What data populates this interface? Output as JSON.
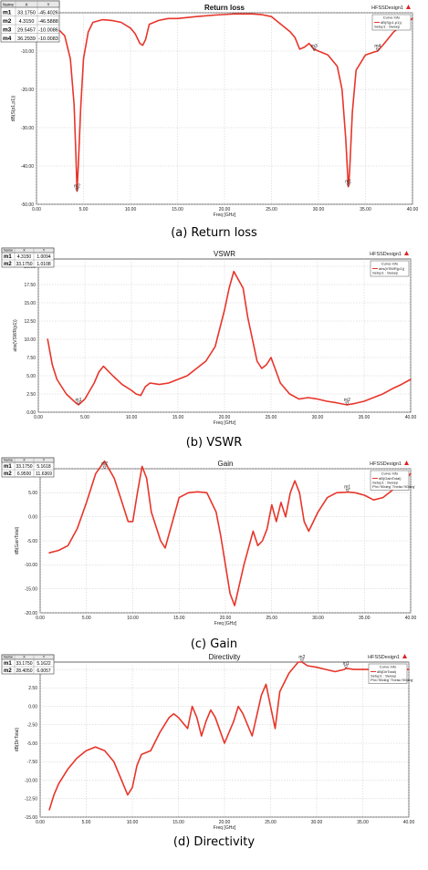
{
  "brand": "HFSSDesign1",
  "legend_title": "Curve Info",
  "chart_data": [
    {
      "id": "rl",
      "type": "line",
      "title": "Return loss",
      "caption": "(a) Return loss",
      "xlabel": "Freq [GHz]",
      "ylabel": "dB(S(p1,p1))",
      "xlim": [
        0,
        40
      ],
      "ylim": [
        -50,
        0
      ],
      "xticks": [
        "0.00",
        "5.00",
        "10.00",
        "15.00",
        "20.00",
        "25.00",
        "30.00",
        "35.00",
        "40.00"
      ],
      "yticks": [
        "0.00",
        "-10.00",
        "-20.00",
        "-30.00",
        "-40.00",
        "-50.00"
      ],
      "grid": true,
      "legend": "top-right",
      "legend_lines": [
        "dB(S(p1,p1))",
        "Setup1 : Sweep"
      ],
      "marker_table": {
        "headers": [
          "Name",
          "X",
          "Y"
        ],
        "rows": [
          [
            "m1",
            "33.1750",
            "-45.4026"
          ],
          [
            "m2",
            "4.3150",
            "-46.5888"
          ],
          [
            "m3",
            "29.5457",
            "-10.0086"
          ],
          [
            "m4",
            "36.2939",
            "-10.0083"
          ]
        ]
      },
      "markers": [
        {
          "name": "m1",
          "x": 33.175,
          "y": -45.4026
        },
        {
          "name": "m2",
          "x": 4.315,
          "y": -46.5888
        },
        {
          "name": "m3",
          "x": 29.5457,
          "y": -10.0086
        },
        {
          "name": "m4",
          "x": 36.2939,
          "y": -10.0083
        }
      ],
      "series": [
        {
          "color": "#e8352a",
          "x": [
            1,
            2,
            3,
            3.6,
            4,
            4.2,
            4.315,
            4.45,
            4.7,
            5,
            5.5,
            6,
            7,
            8,
            9,
            10,
            10.5,
            11,
            11.3,
            11.6,
            12,
            13,
            14,
            15,
            17,
            19,
            21,
            22,
            23,
            24,
            25,
            26,
            27,
            27.5,
            28,
            28.5,
            29,
            29.5,
            30,
            31,
            32,
            32.5,
            32.9,
            33.1,
            33.175,
            33.3,
            33.6,
            34,
            35,
            36,
            36.3,
            37,
            38,
            39,
            40
          ],
          "y": [
            -3,
            -3.5,
            -6,
            -12,
            -24,
            -38,
            -46.6,
            -40,
            -25,
            -12,
            -5,
            -2.5,
            -1.8,
            -2,
            -2.5,
            -4,
            -5.5,
            -8,
            -8.5,
            -7,
            -3,
            -2,
            -1.5,
            -1.5,
            -1,
            -0.6,
            -0.3,
            -0.3,
            -0.3,
            -0.5,
            -1,
            -3,
            -5,
            -6.5,
            -9.5,
            -9,
            -8,
            -9.5,
            -10,
            -11,
            -14,
            -20,
            -33,
            -42,
            -45.4,
            -42,
            -26,
            -15,
            -11,
            -10.2,
            -10,
            -8,
            -5,
            -3,
            -1.5
          ]
        }
      ]
    },
    {
      "id": "vswr",
      "type": "line",
      "title": "VSWR",
      "caption": "(b) VSWR",
      "xlabel": "Freq [GHz]",
      "ylabel": "abs(VSWR(p1))",
      "xlim": [
        0,
        40
      ],
      "ylim": [
        0,
        21
      ],
      "xticks": [
        "0.00",
        "5.00",
        "10.00",
        "15.00",
        "20.00",
        "25.00",
        "30.00",
        "35.00",
        "40.00"
      ],
      "yticks": [
        "0.00",
        "2.50",
        "5.00",
        "7.50",
        "10.00",
        "12.50",
        "15.00",
        "17.50",
        "20.00"
      ],
      "ytick_values": [
        0,
        2.5,
        5,
        7.5,
        10,
        12.5,
        15,
        17.5,
        20
      ],
      "grid": true,
      "legend": "top-right",
      "legend_lines": [
        "abs(VSWR(p1))",
        "Setup1 : Sweep"
      ],
      "marker_table": {
        "headers": [
          "Name",
          "X",
          "Y"
        ],
        "rows": [
          [
            "m1",
            "4.3150",
            "1.0094"
          ],
          [
            "m2",
            "33.1750",
            "1.0108"
          ]
        ]
      },
      "markers": [
        {
          "name": "m1",
          "x": 4.315,
          "y": 1.0094
        },
        {
          "name": "m2",
          "x": 33.175,
          "y": 1.0108
        }
      ],
      "series": [
        {
          "color": "#e8352a",
          "x": [
            1,
            1.5,
            2,
            3,
            4,
            4.315,
            5,
            6,
            6.5,
            7,
            8,
            9,
            10,
            10.5,
            11,
            11.5,
            12,
            13,
            14,
            16,
            18,
            19,
            20,
            20.5,
            21,
            22,
            22.5,
            23,
            23.5,
            24,
            24.5,
            25,
            26,
            27,
            28,
            29,
            30,
            31,
            32,
            33,
            33.175,
            34,
            35,
            36,
            37,
            38,
            39,
            40
          ],
          "y": [
            10,
            6.5,
            4.5,
            2.5,
            1.3,
            1.01,
            1.8,
            4,
            5.5,
            6.3,
            5,
            3.8,
            3,
            2.5,
            2.3,
            3.5,
            4,
            3.8,
            4,
            5,
            7,
            9,
            14,
            17,
            19.3,
            17,
            13,
            10,
            7,
            6,
            6.5,
            7.5,
            4,
            2.5,
            1.8,
            2,
            1.8,
            1.5,
            1.3,
            1.05,
            1.01,
            1.2,
            1.5,
            2,
            2.5,
            3.2,
            3.8,
            4.5
          ]
        }
      ]
    },
    {
      "id": "gain",
      "type": "line",
      "title": "Gain",
      "caption": "(c) Gain",
      "xlabel": "Freq [GHz]",
      "ylabel": "dB(GainTotal)",
      "xlim": [
        0,
        40
      ],
      "ylim": [
        -20,
        10
      ],
      "xticks": [
        "0.00",
        "5.00",
        "10.00",
        "15.00",
        "20.00",
        "25.00",
        "30.00",
        "35.00",
        "40.00"
      ],
      "yticks": [
        "10.00",
        "5.00",
        "0.00",
        "-5.00",
        "-10.00",
        "-15.00",
        "-20.00"
      ],
      "grid": true,
      "legend": "top-right",
      "legend_lines": [
        "dB(GainTotal)",
        "Setup1 : Sweep",
        "Phi='90deg' Theta='90deg'"
      ],
      "marker_table": {
        "headers": [
          "Name",
          "X",
          "Y"
        ],
        "rows": [
          [
            "m1",
            "33.1750",
            "5.1618"
          ],
          [
            "m2",
            "6.9500",
            "11.6369"
          ]
        ]
      },
      "markers": [
        {
          "name": "m1",
          "x": 33.175,
          "y": 5.1618
        },
        {
          "name": "m2",
          "x": 6.95,
          "y": 11.6369
        }
      ],
      "series": [
        {
          "color": "#e8352a",
          "x": [
            1,
            2,
            3,
            4,
            5,
            6,
            6.95,
            8,
            9,
            9.5,
            10,
            10.5,
            11,
            11.5,
            12,
            13,
            13.5,
            14,
            15,
            16,
            17,
            18,
            19,
            19.5,
            20,
            20.5,
            21,
            22,
            23,
            23.5,
            24,
            24.5,
            25,
            25.5,
            26,
            26.5,
            27,
            27.5,
            28,
            28.5,
            29,
            30,
            31,
            32,
            33,
            33.175,
            34,
            35,
            36,
            37,
            38,
            39,
            40
          ],
          "y": [
            -7.5,
            -7,
            -6,
            -2.5,
            3,
            9,
            11.6,
            8,
            2,
            -1,
            -1,
            5,
            10.5,
            8,
            1,
            -5,
            -6.5,
            -3,
            4,
            5,
            5.2,
            5,
            1,
            -4,
            -10,
            -16,
            -18.5,
            -10,
            -3,
            -6,
            -5,
            -2.5,
            2.5,
            -1,
            3,
            0,
            5,
            7.5,
            5,
            -1,
            -3,
            1,
            4,
            5,
            5.1,
            5.16,
            5,
            4.5,
            3.5,
            4,
            5.5,
            7,
            9
          ]
        }
      ]
    },
    {
      "id": "dir",
      "type": "line",
      "title": "Directivity",
      "caption": "(d) Directivity",
      "xlabel": "Freq [GHz]",
      "ylabel": "dB(DirTotal)",
      "xlim": [
        0,
        40
      ],
      "ylim": [
        -15,
        6
      ],
      "xticks": [
        "0.00",
        "5.00",
        "10.00",
        "15.00",
        "20.00",
        "25.00",
        "30.00",
        "35.00",
        "40.00"
      ],
      "yticks": [
        "5.00",
        "2.50",
        "0.00",
        "-2.50",
        "-5.00",
        "-7.50",
        "-10.00",
        "-12.50",
        "-15.00"
      ],
      "ytick_values": [
        5,
        2.5,
        0,
        -2.5,
        -5,
        -7.5,
        -10,
        -12.5,
        -15
      ],
      "grid": true,
      "legend": "top-right",
      "legend_lines": [
        "dB(DirTotal)",
        "Setup1 : Sweep",
        "Phi='90deg' Theta='90deg'"
      ],
      "marker_table": {
        "headers": [
          "Name",
          "X",
          "Y"
        ],
        "rows": [
          [
            "m1",
            "33.1750",
            "5.1622"
          ],
          [
            "m2",
            "28.4050",
            "6.0057"
          ]
        ]
      },
      "markers": [
        {
          "name": "m1",
          "x": 33.175,
          "y": 5.1622
        },
        {
          "name": "m2",
          "x": 28.405,
          "y": 6.0057
        }
      ],
      "series": [
        {
          "color": "#e8352a",
          "x": [
            1,
            1.5,
            2,
            3,
            4,
            5,
            6,
            7,
            8,
            9,
            9.5,
            10,
            10.5,
            11,
            12,
            13,
            14,
            14.5,
            15,
            16,
            16.5,
            17,
            17.5,
            18,
            18.5,
            19,
            20,
            21,
            21.5,
            22,
            23,
            24,
            24.5,
            25,
            25.5,
            26,
            27,
            28,
            28.405,
            29,
            30,
            31,
            32,
            33,
            33.175,
            34,
            35,
            36,
            37,
            38,
            39,
            40
          ],
          "y": [
            -14,
            -12,
            -10.5,
            -8.5,
            -7,
            -6,
            -5.5,
            -6,
            -7.5,
            -10.5,
            -12,
            -11,
            -8,
            -6.5,
            -6,
            -3.5,
            -1.5,
            -1,
            -1.5,
            -3,
            0,
            -1.5,
            -4,
            -2,
            -0.5,
            -1.5,
            -5,
            -2,
            0,
            -1,
            -4,
            1.5,
            3,
            0,
            -3,
            2,
            4.5,
            6,
            6,
            5.5,
            5.3,
            5,
            4.7,
            5,
            5.16,
            5,
            5,
            5,
            4.7,
            4.9,
            5,
            5
          ]
        }
      ]
    }
  ]
}
